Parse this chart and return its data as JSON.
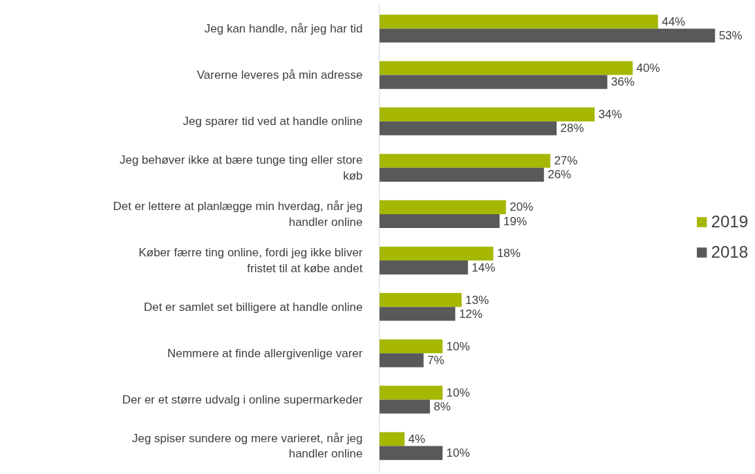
{
  "chart_data": {
    "type": "bar",
    "orientation": "horizontal",
    "categories": [
      "Jeg kan handle, når jeg har tid",
      "Varerne leveres på min adresse",
      "Jeg sparer tid ved at handle online",
      "Jeg behøver ikke at bære tunge ting eller store køb",
      "Det er lettere at planlægge min hverdag, når jeg handler online",
      "Køber færre ting online, fordi jeg ikke bliver fristet til at købe andet",
      "Det er samlet set billigere at handle online",
      "Nemmere at finde allergivenlige varer",
      "Der er et større udvalg i online supermarkeder",
      "Jeg spiser sundere og mere varieret, når jeg handler online"
    ],
    "series": [
      {
        "name": "2019",
        "color": "#a5b700",
        "values": [
          44,
          40,
          34,
          27,
          20,
          18,
          13,
          10,
          10,
          4
        ],
        "value_labels": [
          "44%",
          "40%",
          "34%",
          "27%",
          "20%",
          "18%",
          "13%",
          "10%",
          "10%",
          "4%"
        ]
      },
      {
        "name": "2018",
        "color": "#595959",
        "values": [
          53,
          36,
          28,
          26,
          19,
          14,
          12,
          7,
          8,
          10
        ],
        "value_labels": [
          "53%",
          "36%",
          "28%",
          "26%",
          "19%",
          "14%",
          "12%",
          "7%",
          "8%",
          "10%"
        ]
      }
    ],
    "legend": "right",
    "grid": false
  }
}
